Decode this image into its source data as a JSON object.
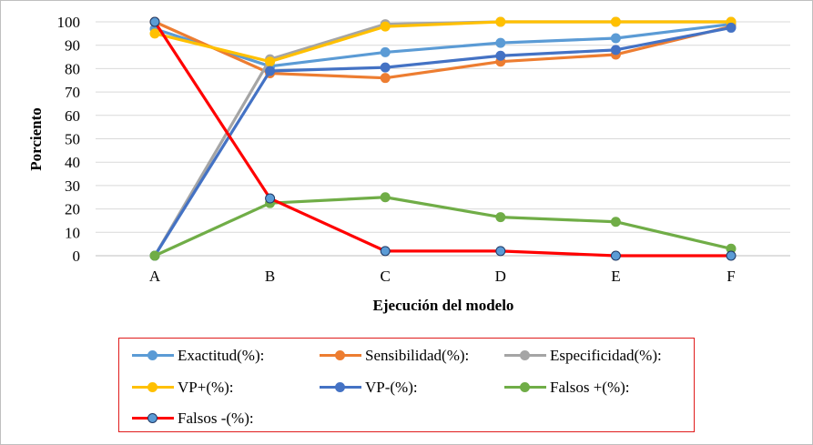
{
  "chart_data": {
    "type": "line",
    "title": "",
    "xlabel": "Ejecución del modelo",
    "ylabel": "Porciento",
    "categories": [
      "A",
      "B",
      "C",
      "D",
      "E",
      "F"
    ],
    "ylim": [
      0,
      100
    ],
    "yticks": [
      0,
      10,
      20,
      30,
      40,
      50,
      60,
      70,
      80,
      90,
      100
    ],
    "grid": true,
    "legend_position": "bottom",
    "series": [
      {
        "name": "Exactitud(%):",
        "color": "#5b9bd5",
        "values": [
          97,
          81,
          87,
          91,
          93,
          99
        ]
      },
      {
        "name": "Sensibilidad(%):",
        "color": "#ed7d31",
        "values": [
          100,
          78,
          76,
          83,
          86,
          98
        ]
      },
      {
        "name": "Especificidad(%):",
        "color": "#a5a5a5",
        "values": [
          0,
          84,
          99,
          100,
          100,
          100
        ]
      },
      {
        "name": "VP+(%):",
        "color": "#ffc000",
        "values": [
          95,
          83,
          98,
          100,
          100,
          100
        ]
      },
      {
        "name": "VP-(%):",
        "color": "#4472c4",
        "values": [
          0,
          79,
          80.5,
          85.5,
          88,
          97.5
        ]
      },
      {
        "name": "Falsos +(%):",
        "color": "#70ad47",
        "values": [
          0,
          22.5,
          25,
          16.5,
          14.5,
          3
        ]
      },
      {
        "name": "Falsos -(%):",
        "color": "#ff0000",
        "marker_color": "#5b9bd5",
        "values": [
          100,
          24.5,
          2,
          2,
          0,
          0
        ]
      }
    ]
  }
}
